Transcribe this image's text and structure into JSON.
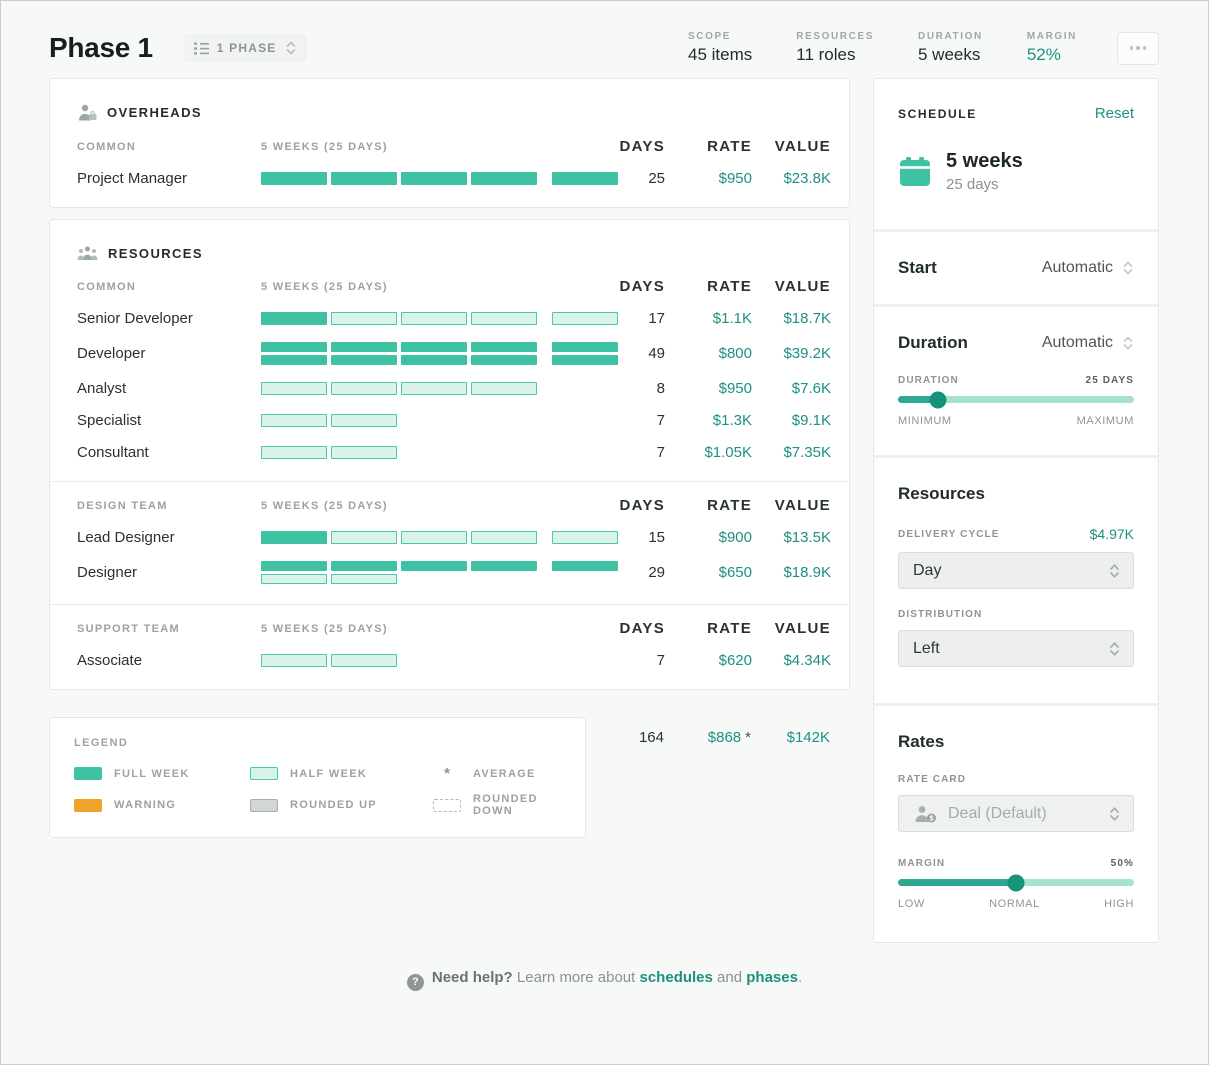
{
  "header": {
    "title": "Phase 1",
    "phase_selector_label": "1 PHASE",
    "stats": [
      {
        "label": "SCOPE",
        "value": "45 items"
      },
      {
        "label": "RESOURCES",
        "value": "11 roles"
      },
      {
        "label": "DURATION",
        "value": "5 weeks"
      },
      {
        "label": "MARGIN",
        "value": "52%"
      }
    ]
  },
  "table_header": {
    "days": "DAYS",
    "rate": "RATE",
    "value": "VALUE"
  },
  "cards": [
    {
      "id": "overheads",
      "title": "OVERHEADS",
      "icon": "person-briefcase-icon",
      "groups": [
        {
          "label": "COMMON",
          "period": "5 WEEKS (25 DAYS)",
          "rows": [
            {
              "name": "Project Manager",
              "days": "25",
              "rate": "$950",
              "value": "$23.8K",
              "lanes": [
                [
                  "full",
                  "full",
                  "full",
                  "full",
                  "full"
                ]
              ]
            }
          ]
        }
      ]
    },
    {
      "id": "resources",
      "title": "RESOURCES",
      "icon": "people-group-icon",
      "groups": [
        {
          "label": "COMMON",
          "period": "5 WEEKS (25 DAYS)",
          "rows": [
            {
              "name": "Senior Developer",
              "days": "17",
              "rate": "$1.1K",
              "value": "$18.7K",
              "lanes": [
                [
                  "full",
                  "half",
                  "half",
                  "half",
                  "half"
                ]
              ]
            },
            {
              "name": "Developer",
              "days": "49",
              "rate": "$800",
              "value": "$39.2K",
              "lanes": [
                [
                  "full",
                  "full",
                  "full",
                  "full",
                  "full"
                ],
                [
                  "full",
                  "full",
                  "full",
                  "full",
                  "full"
                ]
              ]
            },
            {
              "name": "Analyst",
              "days": "8",
              "rate": "$950",
              "value": "$7.6K",
              "lanes": [
                [
                  "half",
                  "half",
                  "half",
                  "half",
                  null
                ]
              ]
            },
            {
              "name": "Specialist",
              "days": "7",
              "rate": "$1.3K",
              "value": "$9.1K",
              "lanes": [
                [
                  "half",
                  "half",
                  null,
                  null,
                  null
                ]
              ]
            },
            {
              "name": "Consultant",
              "days": "7",
              "rate": "$1.05K",
              "value": "$7.35K",
              "lanes": [
                [
                  "half",
                  "half",
                  null,
                  null,
                  null
                ]
              ]
            }
          ]
        },
        {
          "label": "DESIGN TEAM",
          "period": "5 WEEKS (25 DAYS)",
          "rows": [
            {
              "name": "Lead Designer",
              "days": "15",
              "rate": "$900",
              "value": "$13.5K",
              "lanes": [
                [
                  "full",
                  "half",
                  "half",
                  "half",
                  "half"
                ]
              ]
            },
            {
              "name": "Designer",
              "days": "29",
              "rate": "$650",
              "value": "$18.9K",
              "lanes": [
                [
                  "full",
                  "full",
                  "full",
                  "full",
                  "full"
                ],
                [
                  "half",
                  "half",
                  null,
                  null,
                  null
                ]
              ]
            }
          ]
        },
        {
          "label": "SUPPORT TEAM",
          "period": "5 WEEKS (25 DAYS)",
          "rows": [
            {
              "name": "Associate",
              "days": "7",
              "rate": "$620",
              "value": "$4.34K",
              "lanes": [
                [
                  "half",
                  "half",
                  null,
                  null,
                  null
                ]
              ]
            }
          ]
        }
      ]
    }
  ],
  "totals": {
    "days": "164",
    "rate": "$868",
    "rate_suffix": "*",
    "value": "$142K"
  },
  "legend": {
    "title": "LEGEND",
    "items": [
      {
        "label": "FULL WEEK",
        "type": "full"
      },
      {
        "label": "HALF WEEK",
        "type": "half"
      },
      {
        "label": "AVERAGE",
        "type": "average",
        "symbol": "*"
      },
      {
        "label": "WARNING",
        "type": "warning"
      },
      {
        "label": "ROUNDED UP",
        "type": "rounded-up"
      },
      {
        "label": "ROUNDED DOWN",
        "type": "rounded-down"
      }
    ]
  },
  "sidebar": {
    "schedule_label": "SCHEDULE",
    "reset_label": "Reset",
    "duration_headline": "5 weeks",
    "duration_sub": "25 days",
    "start": {
      "label": "Start",
      "value": "Automatic"
    },
    "duration": {
      "label": "Duration",
      "value": "Automatic",
      "slider_label": "DURATION",
      "slider_value": "25 DAYS",
      "slider_pct": 17,
      "min_label": "MINIMUM",
      "max_label": "MAXIMUM"
    },
    "resources": {
      "title": "Resources",
      "delivery_cycle_label": "DELIVERY CYCLE",
      "delivery_cycle_cost": "$4.97K",
      "delivery_cycle_value": "Day",
      "distribution_label": "DISTRIBUTION",
      "distribution_value": "Left"
    },
    "rates": {
      "title": "Rates",
      "rate_card_label": "RATE CARD",
      "rate_card_value": "Deal (Default)",
      "margin_label": "MARGIN",
      "margin_value": "50%",
      "margin_pct": 50,
      "low": "LOW",
      "normal": "NORMAL",
      "high": "HIGH"
    }
  },
  "footer": {
    "help_icon": "?",
    "bold": "Need help?",
    "text": "Learn more about",
    "link_schedules": "schedules",
    "conjunction": "and",
    "link_phases": "phases",
    "period": "."
  },
  "colors": {
    "teal": "#3fc1a3",
    "teal_text": "#1e9082",
    "warning": "#f0a32a",
    "half_fill": "#d9f2ea"
  }
}
